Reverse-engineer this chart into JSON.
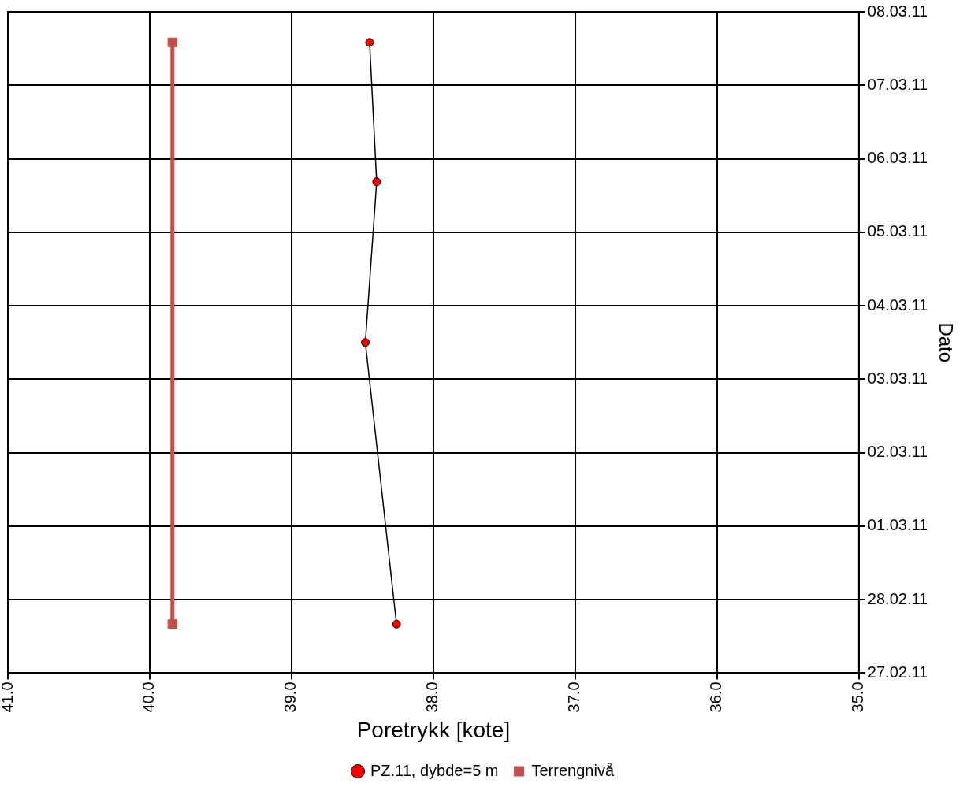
{
  "chart_data": {
    "type": "line",
    "orientation": "horizontal",
    "xlabel": "Poretrykk [kote]",
    "ylabel": "Dato",
    "xlim": [
      41,
      35
    ],
    "xticks": [
      {
        "value": 41,
        "label": "41.0"
      },
      {
        "value": 40,
        "label": "40.0"
      },
      {
        "value": 39,
        "label": "39.0"
      },
      {
        "value": 38,
        "label": "38.0"
      },
      {
        "value": 37,
        "label": "37.0"
      },
      {
        "value": 36,
        "label": "36.0"
      },
      {
        "value": 35,
        "label": "35.0"
      }
    ],
    "ylim": [
      "--02-27",
      "--03-08"
    ],
    "yticks": [
      {
        "value": "--02-27",
        "label": "27.02.11"
      },
      {
        "value": "--02-28",
        "label": "28.02.11"
      },
      {
        "value": "--03-01",
        "label": "01.03.11"
      },
      {
        "value": "--03-02",
        "label": "02.03.11"
      },
      {
        "value": "--03-03",
        "label": "03.03.11"
      },
      {
        "value": "--03-04",
        "label": "04.03.11"
      },
      {
        "value": "--03-05",
        "label": "05.03.11"
      },
      {
        "value": "--03-06",
        "label": "06.03.11"
      },
      {
        "value": "--03-07",
        "label": "07.03.11"
      },
      {
        "value": "--03-08",
        "label": "08.03.11"
      }
    ],
    "series": [
      {
        "name": "PZ.11, dybde=5 m",
        "color": "#ff0000",
        "marker": "circle",
        "x": [
          "--03-07T14:00",
          "--03-05T16:30",
          "--03-03T12:00",
          "--02-27T16:00"
        ],
        "values": [
          38.45,
          38.4,
          38.48,
          38.26
        ]
      },
      {
        "name": "Terrengnivå",
        "color": "#c0504d",
        "marker": "square",
        "x": [
          "--03-07T14:00",
          "--02-27T16:00"
        ],
        "values": [
          39.84,
          39.84
        ]
      }
    ],
    "grid": true,
    "legend": "bottom"
  }
}
